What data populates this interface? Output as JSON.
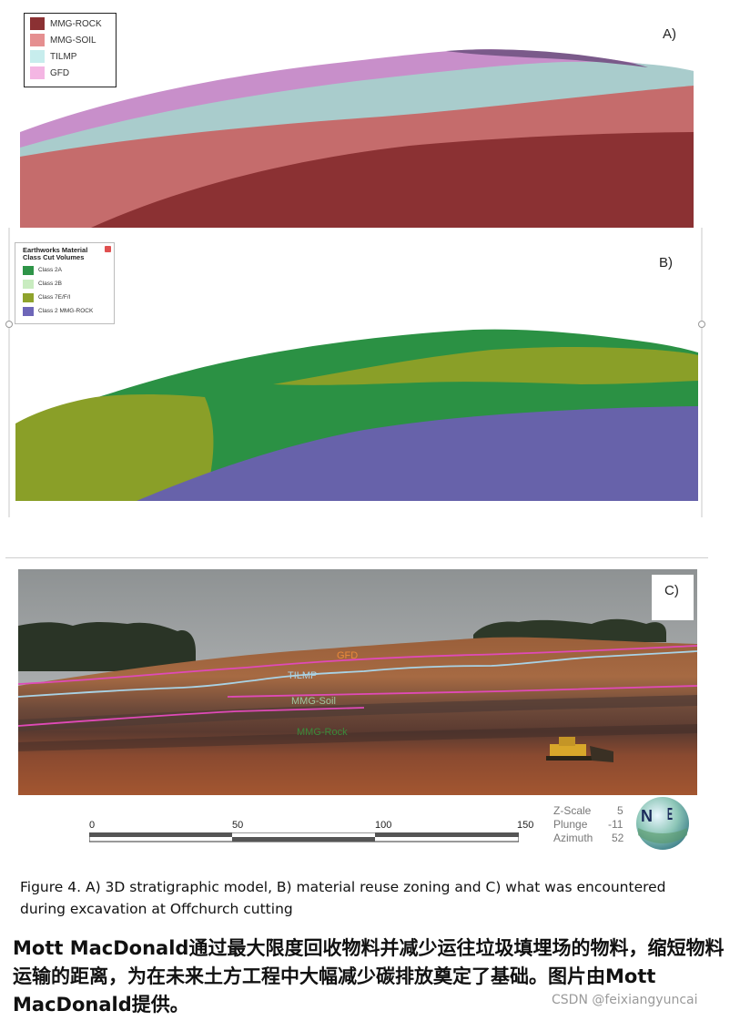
{
  "panel_a": {
    "label": "A)",
    "legend": [
      {
        "label": "MMG-ROCK",
        "color": "#8b3133"
      },
      {
        "label": "MMG-SOIL",
        "color": "#e58f90"
      },
      {
        "label": "TILMP",
        "color": "#c7eded"
      },
      {
        "label": "GFD",
        "color": "#f4b6e3"
      }
    ]
  },
  "panel_b": {
    "label": "B)",
    "legend_title": "Earthworks Material Class Cut Volumes",
    "legend": [
      {
        "label": "Class 2A",
        "color": "#2e9448"
      },
      {
        "label": "Class 2B",
        "color": "#c9ecc0"
      },
      {
        "label": "Class 7E/F/I",
        "color": "#8fa32c"
      },
      {
        "label": "Class 2 MMG-ROCK",
        "color": "#6e66b8"
      }
    ]
  },
  "panel_c": {
    "label": "C)",
    "layer_labels": [
      "GFD",
      "TILMP",
      "MMG-Soil",
      "MMG-Rock"
    ],
    "scale_ticks": [
      "0",
      "50",
      "100",
      "150"
    ],
    "view": {
      "z_scale_label": "Z-Scale",
      "z_scale_value": "5",
      "plunge_label": "Plunge",
      "plunge_value": "-11",
      "azimuth_label": "Azimuth",
      "azimuth_value": "52"
    },
    "compass_letters": [
      "N",
      "E"
    ]
  },
  "caption_en": "Figure 4. A) 3D stratigraphic model, B) material reuse zoning and C) what was encountered during excavation at Offchurch cutting",
  "caption_cn": "Mott MacDonald通过最大限度回收物料并减少运往垃圾填埋场的物料，缩短物料运输的距离，为在未来土方工程中大幅减少碳排放奠定了基础。图片由Mott MacDonald提供。",
  "watermark": "CSDN @feixiangyuncai"
}
